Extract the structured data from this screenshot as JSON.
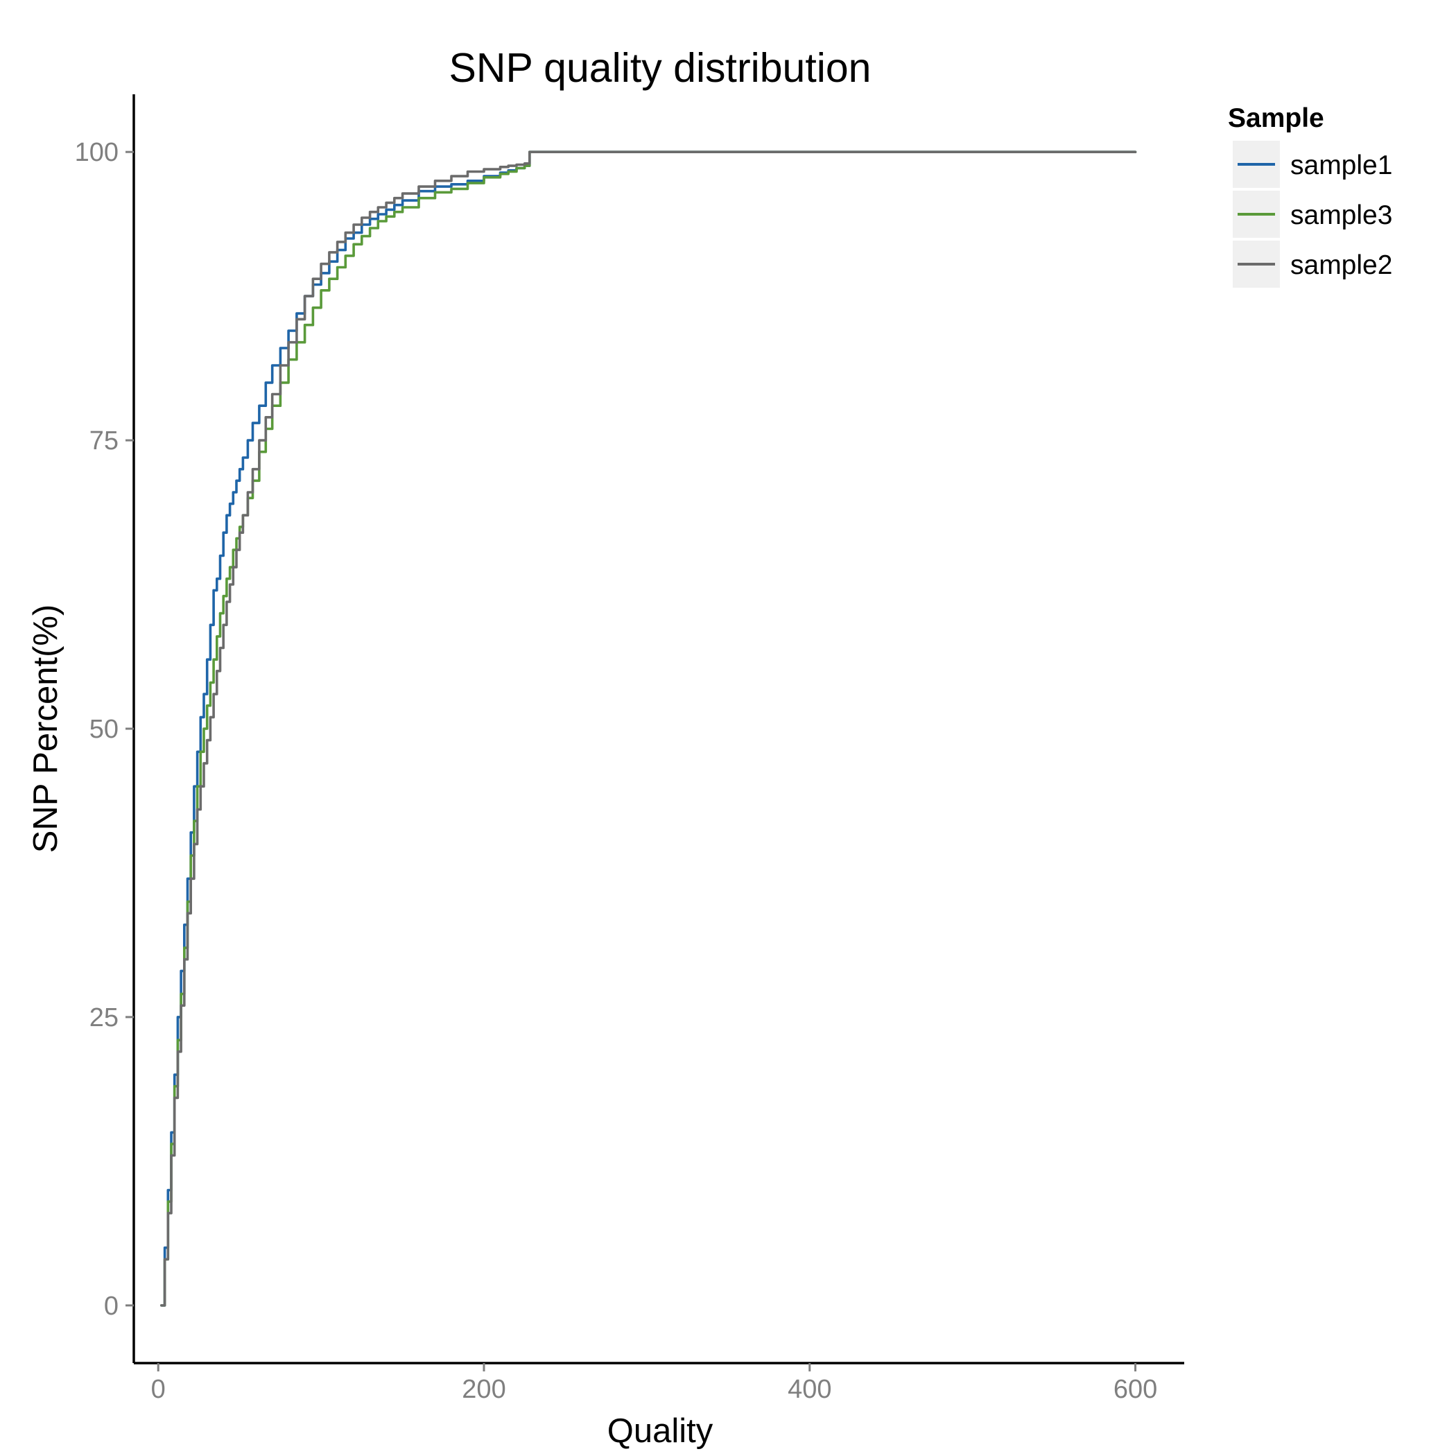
{
  "chart_data": {
    "type": "line",
    "title": "SNP quality distribution",
    "xlabel": "Quality",
    "ylabel": "SNP Percent(%)",
    "xlim": [
      -15,
      630
    ],
    "ylim": [
      -5,
      105
    ],
    "xticks": [
      0,
      200,
      400,
      600
    ],
    "yticks": [
      0,
      25,
      50,
      75,
      100
    ],
    "grid": false,
    "legend": {
      "title": "Sample",
      "placement": "right-top"
    },
    "series": [
      {
        "name": "sample1",
        "color": "#1f65a8",
        "x": [
          2,
          4,
          6,
          8,
          10,
          12,
          14,
          16,
          18,
          20,
          22,
          24,
          26,
          28,
          30,
          32,
          34,
          36,
          38,
          40,
          42,
          44,
          46,
          48,
          50,
          52,
          55,
          58,
          62,
          66,
          70,
          75,
          80,
          85,
          90,
          95,
          100,
          105,
          110,
          115,
          120,
          125,
          130,
          135,
          140,
          145,
          150,
          160,
          170,
          180,
          190,
          200,
          210,
          215,
          220,
          225,
          228,
          600
        ],
        "y": [
          0,
          5,
          10,
          15,
          20,
          25,
          29,
          33,
          37,
          41,
          45,
          48,
          51,
          53,
          56,
          59,
          62,
          63,
          65,
          67,
          68.5,
          69.5,
          70.5,
          71.5,
          72.5,
          73.5,
          75,
          76.5,
          78,
          80,
          81.5,
          83,
          84.5,
          86,
          87.5,
          88.5,
          89.5,
          90.5,
          91.5,
          92.5,
          93,
          93.7,
          94.2,
          94.6,
          95,
          95.4,
          95.8,
          96.6,
          97,
          97.2,
          97.5,
          97.9,
          98.2,
          98.4,
          98.6,
          98.8,
          100,
          100
        ]
      },
      {
        "name": "sample3",
        "color": "#5a9a3a",
        "x": [
          2,
          4,
          6,
          8,
          10,
          12,
          14,
          16,
          18,
          20,
          22,
          24,
          26,
          28,
          30,
          32,
          34,
          36,
          38,
          40,
          42,
          44,
          46,
          48,
          50,
          52,
          55,
          58,
          62,
          66,
          70,
          75,
          80,
          85,
          90,
          95,
          100,
          105,
          110,
          115,
          120,
          125,
          130,
          135,
          140,
          145,
          150,
          160,
          170,
          180,
          190,
          200,
          210,
          215,
          220,
          225,
          228,
          600
        ],
        "y": [
          0,
          4,
          9,
          14,
          19,
          23,
          27,
          31,
          35,
          39,
          42,
          45,
          48,
          50,
          52,
          54,
          56,
          58,
          60,
          61.5,
          63,
          64,
          65.5,
          66.5,
          67.5,
          68.5,
          70,
          71.5,
          74,
          76,
          78,
          80,
          82,
          83.5,
          85,
          86.5,
          88,
          89,
          90,
          91,
          92,
          92.7,
          93.4,
          94,
          94.4,
          94.8,
          95.2,
          96,
          96.5,
          96.8,
          97.3,
          97.8,
          98.1,
          98.3,
          98.6,
          98.8,
          100,
          100
        ]
      },
      {
        "name": "sample2",
        "color": "#6b6b6b",
        "x": [
          2,
          4,
          6,
          8,
          10,
          12,
          14,
          16,
          18,
          20,
          22,
          24,
          26,
          28,
          30,
          32,
          34,
          36,
          38,
          40,
          42,
          44,
          46,
          48,
          50,
          52,
          55,
          58,
          62,
          66,
          70,
          75,
          80,
          85,
          90,
          95,
          100,
          105,
          110,
          115,
          120,
          125,
          130,
          135,
          140,
          145,
          150,
          160,
          170,
          180,
          190,
          200,
          210,
          215,
          220,
          225,
          228,
          600
        ],
        "y": [
          0,
          4,
          8,
          13,
          18,
          22,
          26,
          30,
          34,
          37,
          40,
          43,
          45,
          47,
          49,
          51,
          53,
          55,
          57,
          59,
          61,
          62.5,
          64,
          65.5,
          67,
          68.5,
          70.5,
          72.5,
          75,
          77,
          79,
          81.5,
          83.5,
          85.5,
          87.5,
          89,
          90.3,
          91.3,
          92.2,
          93,
          93.7,
          94.3,
          94.8,
          95.2,
          95.6,
          96,
          96.4,
          97,
          97.5,
          97.9,
          98.3,
          98.5,
          98.7,
          98.8,
          98.9,
          99,
          100,
          100
        ]
      }
    ]
  }
}
